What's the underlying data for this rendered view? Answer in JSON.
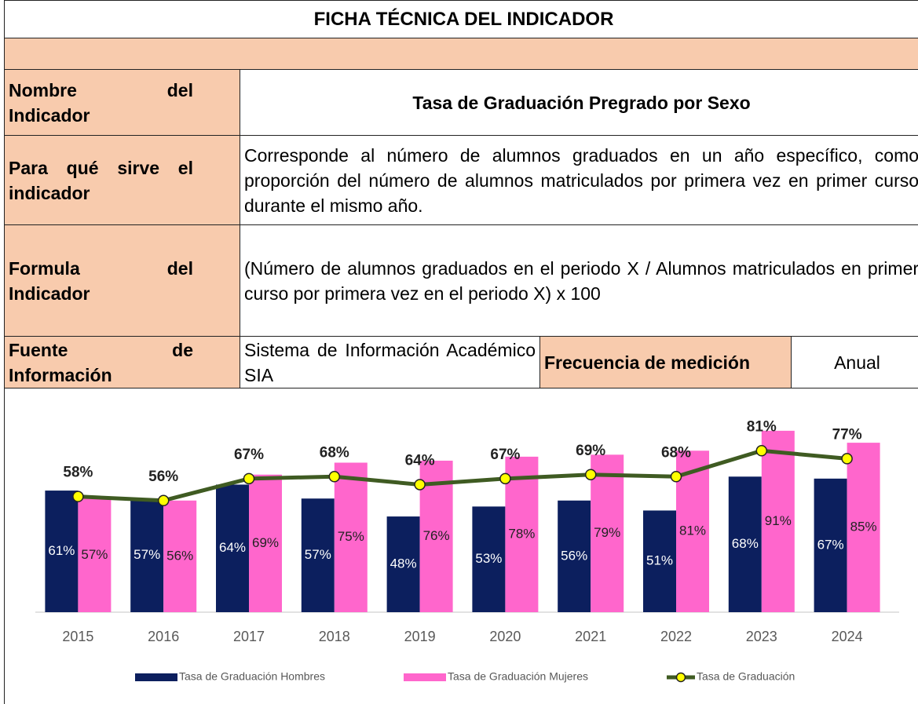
{
  "header": {
    "title": "FICHA TÉCNICA DEL INDICADOR"
  },
  "table": {
    "rows": [
      [
        "Nombre del Indicador",
        "Tasa de Graduación Pregrado por Sexo"
      ],
      [
        "Para qué sirve el indicador",
        "Corresponde al número de alumnos graduados en un año específico, como proporción del número de alumnos matriculados por primera vez en primer curso durante el mismo año."
      ],
      [
        "Formula del Indicador",
        "(Número de alumnos graduados en el periodo X / Alumnos matriculados en primer curso por primera vez en el periodo X) x 100"
      ],
      [
        "Fuente de Información",
        "Sistema de Información Académico SIA",
        "Frecuencia de medición",
        "Anual"
      ]
    ]
  },
  "chart_data": {
    "type": "bar",
    "categories": [
      "2015",
      "2016",
      "2017",
      "2018",
      "2019",
      "2020",
      "2021",
      "2022",
      "2023",
      "2024"
    ],
    "series": [
      {
        "name": "Tasa de Graduación Hombres",
        "type": "bar",
        "color": "#0c1f5e",
        "values": [
          61,
          57,
          64,
          57,
          48,
          53,
          56,
          51,
          68,
          67
        ],
        "value_labels": [
          "61%",
          "57%",
          "64%",
          "57%",
          "48%",
          "53%",
          "56%",
          "51%",
          "68%",
          "67%"
        ]
      },
      {
        "name": "Tasa de Graduación Mujeres",
        "type": "bar",
        "color": "#ff66cc",
        "values": [
          57,
          56,
          69,
          75,
          76,
          78,
          79,
          81,
          91,
          85
        ],
        "value_labels": [
          "57%",
          "56%",
          "69%",
          "75%",
          "76%",
          "78%",
          "79%",
          "81%",
          "91%",
          "85%"
        ]
      },
      {
        "name": "Tasa de Graduación",
        "type": "line",
        "color": "#3f5b22",
        "marker_color": "#ffff00",
        "values": [
          58,
          56,
          67,
          68,
          64,
          67,
          69,
          68,
          81,
          77
        ],
        "value_labels": [
          "58%",
          "56%",
          "67%",
          "68%",
          "64%",
          "67%",
          "69%",
          "68%",
          "81%",
          "77%"
        ]
      }
    ],
    "ylim": [
      0,
      100
    ],
    "legend": "bottom"
  }
}
